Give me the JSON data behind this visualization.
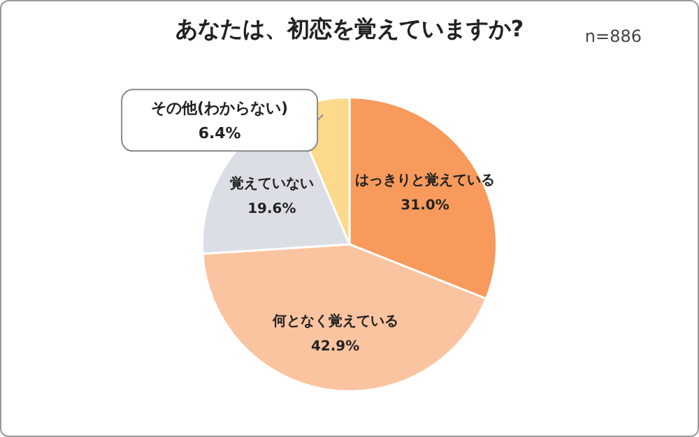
{
  "chart_data": {
    "type": "pie",
    "title": "あなたは、初恋を覚えていますか?",
    "annotations": [
      "n=886"
    ],
    "categories": [
      "はっきりと覚えている",
      "何となく覚えている",
      "覚えていない",
      "その他(わからない)"
    ],
    "values": [
      31.0,
      42.9,
      19.6,
      6.4
    ],
    "colors": [
      "#f79a5c",
      "#fbc4a0",
      "#dcdee6",
      "#fdd98c"
    ],
    "value_labels": [
      "31.0%",
      "42.9%",
      "19.6%",
      "6.4%"
    ]
  }
}
